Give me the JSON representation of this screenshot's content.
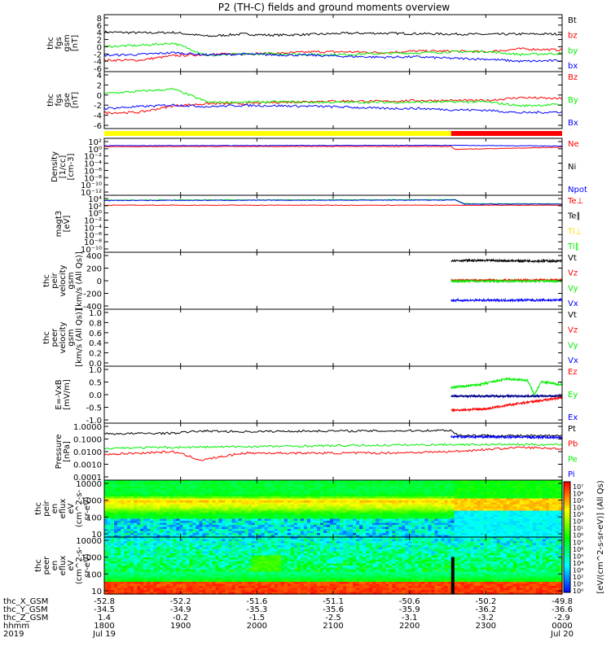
{
  "title": "P2 (TH-C) fields and ground moments overview",
  "colors": {
    "black": "#000000",
    "red": "#ff0000",
    "green": "#00ee00",
    "blue": "#0000ff",
    "yellow": "#ffff00"
  },
  "chart_data": [
    {
      "id": "fgs-gsm",
      "type": "line",
      "ylabel": [
        "thc",
        "fgs",
        "gsm",
        "[nT]"
      ],
      "yticks": [
        8,
        6,
        4,
        2,
        0,
        -2,
        -4,
        -6
      ],
      "ylim": [
        -6,
        9
      ],
      "legend": [
        {
          "label": "Bt",
          "color": "#000000"
        },
        {
          "label": "bz",
          "color": "#ff0000"
        },
        {
          "label": "by",
          "color": "#00ee00"
        },
        {
          "label": "bx",
          "color": "#0000ff"
        }
      ],
      "series": [
        {
          "name": "Bt",
          "color": "#000000",
          "x": [
            0,
            0.6,
            1,
            1.5,
            2,
            2.4,
            3,
            3.5,
            4,
            4.5,
            5,
            5.5,
            6,
            6.6
          ],
          "y": [
            4.4,
            4.2,
            4.3,
            3.3,
            3.9,
            3.6,
            3.8,
            4.1,
            4.1,
            4.0,
            3.9,
            3.8,
            3.9,
            3.9
          ]
        },
        {
          "name": "bz",
          "color": "#ff0000",
          "x": [
            0,
            0.5,
            1,
            1.5,
            2,
            2.5,
            3,
            3.5,
            4,
            4.5,
            5,
            5.5,
            6,
            6.6
          ],
          "y": [
            -3.0,
            -3.0,
            -1.8,
            -1.5,
            -1.3,
            -1.2,
            -0.8,
            -0.8,
            -1.0,
            -0.6,
            -0.6,
            -0.8,
            0.0,
            -0.3
          ]
        },
        {
          "name": "by",
          "color": "#00ee00",
          "x": [
            0,
            0.5,
            1,
            1.5,
            2,
            2.5,
            3,
            3.5,
            4,
            4.5,
            5,
            5.5,
            6,
            6.6
          ],
          "y": [
            0.6,
            0.9,
            1.5,
            -1.8,
            -1.4,
            -1.3,
            -1.5,
            -1.5,
            -1.2,
            -1.1,
            -0.8,
            -0.7,
            -1.5,
            -1.2
          ]
        },
        {
          "name": "bx",
          "color": "#0000ff",
          "x": [
            0,
            0.5,
            1,
            1.5,
            2,
            2.5,
            3,
            3.5,
            4,
            4.5,
            5,
            5.5,
            6,
            6.6
          ],
          "y": [
            -1.7,
            -1.5,
            -1.0,
            -1.6,
            -1.4,
            -1.6,
            -1.7,
            -2.0,
            -2.2,
            -2.1,
            -2.5,
            -2.7,
            -3.3,
            -3.1
          ]
        }
      ]
    },
    {
      "id": "fgs-gse",
      "type": "line",
      "ylabel": [
        "thc",
        "fgs",
        "gse",
        "[nT]"
      ],
      "yticks": [
        4,
        2,
        0,
        -2,
        -4,
        -6
      ],
      "ylim": [
        -7,
        6
      ],
      "legend": [
        {
          "label": "Bz",
          "color": "#ff0000"
        },
        {
          "label": "By",
          "color": "#00ee00"
        },
        {
          "label": "Bx",
          "color": "#0000ff"
        }
      ],
      "series": [
        {
          "name": "Bz",
          "color": "#ff0000",
          "x": [
            0,
            0.5,
            1,
            1.5,
            2,
            2.5,
            3,
            3.5,
            4,
            4.5,
            5,
            5.5,
            6,
            6.6
          ],
          "y": [
            -3.4,
            -3.3,
            -1.8,
            -1.3,
            -1.3,
            -1.0,
            -0.8,
            -0.7,
            -0.8,
            -0.6,
            -0.6,
            -0.6,
            0.1,
            -0.2
          ]
        },
        {
          "name": "By",
          "color": "#00ee00",
          "x": [
            0,
            0.5,
            1,
            1.5,
            2,
            2.5,
            3,
            3.5,
            4,
            4.5,
            5,
            5.5,
            6,
            6.6
          ],
          "y": [
            1.0,
            1.5,
            2.0,
            -1.0,
            -1.0,
            -0.9,
            -1.0,
            -1.0,
            -1.0,
            -1.0,
            -0.9,
            -0.9,
            -1.8,
            -1.5
          ]
        },
        {
          "name": "Bx",
          "color": "#0000ff",
          "x": [
            0,
            0.5,
            1,
            1.5,
            2,
            2.5,
            3,
            3.5,
            4,
            4.5,
            5,
            5.5,
            6,
            6.6
          ],
          "y": [
            -2.4,
            -2.0,
            -1.6,
            -2.0,
            -1.7,
            -1.8,
            -1.9,
            -2.1,
            -2.4,
            -2.4,
            -2.7,
            -2.8,
            -3.4,
            -3.2
          ]
        }
      ]
    },
    {
      "id": "density",
      "type": "line",
      "ylabel": [
        "Density",
        "[1/cc]",
        "[cm-3]"
      ],
      "yticks": [
        "10²",
        "10⁰",
        "10⁻²",
        "10⁻⁴",
        "10⁻⁶",
        "10⁻⁸",
        "10⁻¹⁰",
        "10⁻¹²"
      ],
      "ylim": [
        -13,
        2.5
      ],
      "log": true,
      "legend": [
        {
          "label": "Ne",
          "color": "#ff0000"
        },
        {
          "label": "Ni",
          "color": "#000000"
        },
        {
          "label": "Npot",
          "color": "#0000ff"
        }
      ],
      "series": [
        {
          "name": "Ne",
          "color": "#ff0000",
          "x": [
            0,
            5,
            5.05,
            6.6
          ],
          "y": [
            0.25,
            0.3,
            -0.5,
            0.1
          ]
        },
        {
          "name": "Npot",
          "color": "#0000ff",
          "x": [
            0,
            5,
            5.05,
            6.6
          ],
          "y": [
            0.5,
            0.6,
            0.6,
            0.4
          ]
        }
      ]
    },
    {
      "id": "temperature",
      "type": "line",
      "ylabel": [
        "magt3",
        "[eV]"
      ],
      "yticks": [
        "10⁴",
        "10²",
        "10⁰",
        "10⁻²",
        "10⁻⁴",
        "10⁻⁶",
        "10⁻⁸",
        "10⁻¹⁰"
      ],
      "ylim": [
        -11,
        4.5
      ],
      "log": true,
      "legend": [
        {
          "label": "Te⊥",
          "color": "#ff0000"
        },
        {
          "label": "Te∥",
          "color": "#000000"
        },
        {
          "label": "Ti⊥",
          "color": "#ffd700"
        },
        {
          "label": "Ti∥",
          "color": "#00ee00"
        }
      ],
      "series": [
        {
          "name": "Te⊥",
          "color": "#ff0000",
          "x": [
            0,
            5,
            5.05,
            6.6
          ],
          "y": [
            1.8,
            1.8,
            1.8,
            1.8
          ]
        },
        {
          "name": "Ti∥",
          "color": "#00ee00",
          "x": [
            0,
            5,
            5.05,
            5.2,
            6.6
          ],
          "y": [
            3.2,
            3.3,
            3.4,
            2.2,
            2.2
          ]
        },
        {
          "name": "Ti⊥",
          "color": "#0000ff",
          "x": [
            0,
            5,
            5.05,
            5.2,
            6.6
          ],
          "y": [
            3.1,
            3.2,
            3.3,
            2.1,
            2.1
          ]
        }
      ]
    },
    {
      "id": "peir-velocity",
      "type": "line",
      "ylabel": [
        "thc",
        "peir",
        "velocity",
        "gsm",
        "[km/s (All Qs)]"
      ],
      "yticks": [
        400,
        200,
        0,
        -200,
        -400
      ],
      "ylim": [
        -420,
        420
      ],
      "legend": [
        {
          "label": "Vt",
          "color": "#000000"
        },
        {
          "label": "Vz",
          "color": "#ff0000"
        },
        {
          "label": "Vy",
          "color": "#00ee00"
        },
        {
          "label": "Vx",
          "color": "#0000ff"
        }
      ],
      "series": [
        {
          "name": "Vt",
          "color": "#000000",
          "x": [
            5,
            6.6
          ],
          "y": [
            300,
            290
          ]
        },
        {
          "name": "Vz",
          "color": "#ff0000",
          "x": [
            5,
            6.6
          ],
          "y": [
            5,
            10
          ]
        },
        {
          "name": "Vy",
          "color": "#00ee00",
          "x": [
            5,
            6.6
          ],
          "y": [
            -5,
            -5
          ]
        },
        {
          "name": "Vx",
          "color": "#0000ff",
          "x": [
            5,
            6.6
          ],
          "y": [
            -290,
            -285
          ]
        }
      ]
    },
    {
      "id": "peer-velocity",
      "type": "line",
      "ylabel": [
        "thc",
        "peer",
        "velocity",
        "gsm",
        "[km/s (All Qs)]"
      ],
      "yticks": [
        "1.0",
        "0.8",
        "0.6",
        "0.4",
        "0.2",
        "0.0"
      ],
      "ylim": [
        0,
        1
      ],
      "legend": [
        {
          "label": "Vt",
          "color": "#000000"
        },
        {
          "label": "Vz",
          "color": "#ff0000"
        },
        {
          "label": "Vy",
          "color": "#00ee00"
        },
        {
          "label": "Vx",
          "color": "#0000ff"
        }
      ],
      "series": []
    },
    {
      "id": "efield",
      "type": "line",
      "ylabel": [
        "E=-VxB",
        "[mV/m]"
      ],
      "yticks": [
        "1.0",
        "0.5",
        "0.0",
        "-0.5",
        "-1.0"
      ],
      "ylim": [
        -1,
        1
      ],
      "legend": [
        {
          "label": "Ez",
          "color": "#ff0000"
        },
        {
          "label": "Ey",
          "color": "#00ee00"
        },
        {
          "label": "Ex",
          "color": "#0000ff"
        }
      ],
      "series": [
        {
          "name": "Ey",
          "color": "#00ee00",
          "x": [
            5,
            5.4,
            5.8,
            6.1,
            6.2,
            6.3,
            6.6
          ],
          "y": [
            0.25,
            0.35,
            0.55,
            0.5,
            0.0,
            0.45,
            0.35
          ]
        },
        {
          "name": "Ex",
          "color": "#0000ff",
          "x": [
            5,
            6.6
          ],
          "y": [
            -0.05,
            -0.05
          ]
        },
        {
          "name": "Ez",
          "color": "#ff0000",
          "x": [
            5,
            5.5,
            6,
            6.3,
            6.6
          ],
          "y": [
            -0.55,
            -0.5,
            -0.3,
            -0.2,
            -0.1
          ]
        }
      ]
    },
    {
      "id": "pressure",
      "type": "line",
      "ylabel": [
        "Pressure",
        "[nPa]"
      ],
      "yticks": [
        "1.0000",
        "0.1000",
        "0.0100",
        "0.0010",
        "0.0001"
      ],
      "ylim": [
        -4,
        0
      ],
      "log": true,
      "legend": [
        {
          "label": "Pt",
          "color": "#000000"
        },
        {
          "label": "Pb",
          "color": "#ff0000"
        },
        {
          "label": "Pe",
          "color": "#00ee00"
        },
        {
          "label": "Pi",
          "color": "#0000ff"
        }
      ],
      "series": [
        {
          "name": "Pt",
          "color": "#000000",
          "x": [
            0,
            1,
            1.4,
            2,
            3,
            4,
            5,
            5.1,
            6.6
          ],
          "y": [
            -0.75,
            -0.7,
            -0.55,
            -0.6,
            -0.55,
            -0.55,
            -0.5,
            -0.85,
            -0.9
          ]
        },
        {
          "name": "Pe",
          "color": "#00ee00",
          "x": [
            0,
            1,
            2,
            3,
            4,
            5,
            6.6
          ],
          "y": [
            -1.75,
            -1.7,
            -1.65,
            -1.6,
            -1.55,
            -1.5,
            -1.5
          ]
        },
        {
          "name": "Pb",
          "color": "#ff0000",
          "x": [
            0,
            1,
            1.4,
            2,
            3,
            4,
            5,
            6,
            6.6
          ],
          "y": [
            -2.2,
            -2.0,
            -2.6,
            -2.1,
            -2.1,
            -2.1,
            -2.0,
            -1.7,
            -1.8
          ]
        },
        {
          "name": "Pi",
          "color": "#0000ff",
          "x": [
            5,
            6.6
          ],
          "y": [
            -0.95,
            -1.0
          ]
        }
      ]
    },
    {
      "id": "peir-eflux",
      "type": "heatmap",
      "ylabel": [
        "thc",
        "peir",
        "en",
        "eflux",
        "eV",
        "(cm^2-s-",
        "sr-eV)"
      ],
      "yticks": [
        "10000",
        "1000",
        "100",
        "10"
      ]
    },
    {
      "id": "peer-eflux",
      "type": "heatmap",
      "ylabel": [
        "thc",
        "peer",
        "en",
        "eflux",
        "eV",
        "(cm^2-s-",
        "sr-eV)"
      ],
      "yticks": [
        "10000",
        "1000",
        "100",
        "10"
      ]
    }
  ],
  "colorbar": {
    "ticks": [
      "10⁷",
      "10⁶",
      "10⁵",
      "10⁴",
      "10³",
      "10²",
      "10¹",
      "10⁰",
      "10⁷",
      "10⁶",
      "10⁵",
      "10⁴",
      "10³",
      "10²",
      "10¹",
      "10⁰"
    ],
    "label": "[eV/(cm^2-s-sr-eV)] (All Qs)"
  },
  "xaxis": {
    "row_labels": [
      "thc_X_GSM",
      "thc_Y_GSM",
      "thc_Z_GSM",
      "hhmm",
      "2019"
    ],
    "columns": [
      {
        "v": [
          "-52.8",
          "-34.5",
          "1.4",
          "1800",
          "Jul 19"
        ]
      },
      {
        "v": [
          "-52.2",
          "-34.9",
          "-0.2",
          "1900",
          ""
        ]
      },
      {
        "v": [
          "-51.6",
          "-35.3",
          "-1.5",
          "2000",
          ""
        ]
      },
      {
        "v": [
          "-51.1",
          "-35.6",
          "-2.5",
          "2100",
          ""
        ]
      },
      {
        "v": [
          "-50.6",
          "-35.9",
          "-3.1",
          "2200",
          ""
        ]
      },
      {
        "v": [
          "-50.2",
          "-36.2",
          "-3.2",
          "2300",
          ""
        ]
      },
      {
        "v": [
          "-49.8",
          "-36.6",
          "-2.9",
          "0000",
          "Jul 20"
        ]
      }
    ]
  }
}
